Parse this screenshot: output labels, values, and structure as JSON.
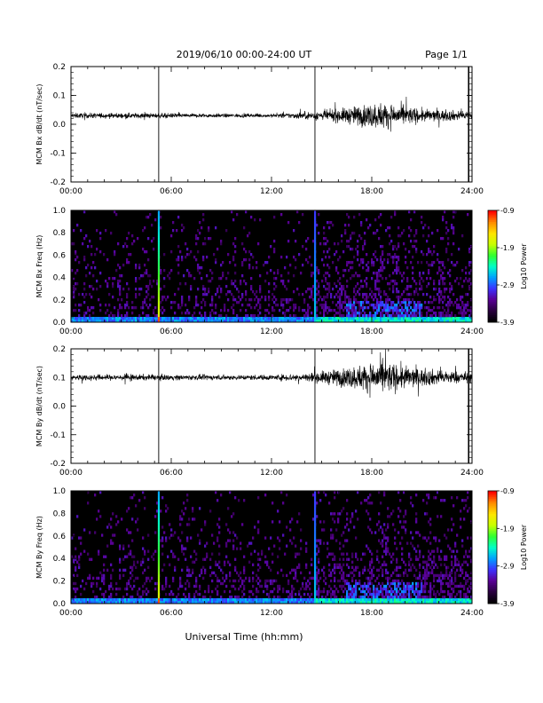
{
  "header": {
    "title": "2019/06/10  00:00-24:00 UT",
    "page": "Page 1/1"
  },
  "footer": {
    "xlabel": "Universal Time (hh:mm)"
  },
  "colors": {
    "trace": "#000000",
    "background": "#ffffff",
    "spectrogram_floor": "#000000",
    "colormap": [
      "#000000",
      "#2a0040",
      "#5a0096",
      "#3c32ff",
      "#00a0ff",
      "#00ffc8",
      "#30ff30",
      "#c8ff00",
      "#ffe600",
      "#ff8c00",
      "#ff0000"
    ]
  },
  "chart_data": [
    {
      "type": "line",
      "id": "bx-ts",
      "ylabel": "MCM Bx dB/dt (nT/sec)",
      "xticks": [
        "00:00",
        "06:00",
        "12:00",
        "18:00",
        "24:00"
      ],
      "xlim": [
        0,
        24
      ],
      "ylim": [
        -0.2,
        0.2
      ],
      "yticks": [
        "-0.2",
        "-0.1",
        "0.0",
        "0.1",
        "0.2"
      ],
      "baseline": 0.03,
      "spikes_hours": [
        5.25,
        14.6,
        23.8
      ],
      "noise_envelope": [
        [
          0,
          0.006
        ],
        [
          4,
          0.006
        ],
        [
          7,
          0.005
        ],
        [
          12,
          0.004
        ],
        [
          14.6,
          0.01
        ],
        [
          16,
          0.015
        ],
        [
          17.5,
          0.025
        ],
        [
          18.5,
          0.03
        ],
        [
          19.5,
          0.025
        ],
        [
          21,
          0.015
        ],
        [
          24,
          0.01
        ]
      ]
    },
    {
      "type": "heatmap",
      "id": "bx-spec",
      "ylabel": "MCM Bx Freq (Hz)",
      "xticks": [
        "00:00",
        "06:00",
        "12:00",
        "18:00",
        "24:00"
      ],
      "xlim": [
        0,
        24
      ],
      "ylim": [
        0.0,
        1.0
      ],
      "yticks": [
        "0.0",
        "0.2",
        "0.4",
        "0.6",
        "0.8",
        "1.0"
      ],
      "colorbar": {
        "label": "Log10 Power",
        "range": [
          -3.9,
          -0.9
        ],
        "ticks": [
          "-0.9",
          "-1.9",
          "-2.9",
          "-3.9"
        ]
      },
      "broadband_hours": [
        5.25,
        14.6
      ],
      "activity_hours": [
        [
          14.6,
          24.0
        ]
      ]
    },
    {
      "type": "line",
      "id": "by-ts",
      "ylabel": "MCM By dB/dt (nT/sec)",
      "xticks": [
        "00:00",
        "06:00",
        "12:00",
        "18:00",
        "24:00"
      ],
      "xlim": [
        0,
        24
      ],
      "ylim": [
        -0.2,
        0.2
      ],
      "yticks": [
        "-0.2",
        "-0.1",
        "0.0",
        "0.1",
        "0.2"
      ],
      "baseline": 0.1,
      "spikes_hours": [
        5.25,
        14.6,
        23.8
      ],
      "noise_envelope": [
        [
          0,
          0.007
        ],
        [
          4,
          0.007
        ],
        [
          7,
          0.006
        ],
        [
          12,
          0.006
        ],
        [
          14.6,
          0.012
        ],
        [
          16,
          0.02
        ],
        [
          17.5,
          0.03
        ],
        [
          18.5,
          0.04
        ],
        [
          19.5,
          0.03
        ],
        [
          21,
          0.02
        ],
        [
          24,
          0.012
        ]
      ]
    },
    {
      "type": "heatmap",
      "id": "by-spec",
      "ylabel": "MCM By Freq (Hz)",
      "xticks": [
        "00:00",
        "06:00",
        "12:00",
        "18:00",
        "24:00"
      ],
      "xlim": [
        0,
        24
      ],
      "ylim": [
        0.0,
        1.0
      ],
      "yticks": [
        "0.0",
        "0.2",
        "0.4",
        "0.6",
        "0.8",
        "1.0"
      ],
      "colorbar": {
        "label": "Log10 Power",
        "range": [
          -3.9,
          -0.9
        ],
        "ticks": [
          "-0.9",
          "-1.9",
          "-2.9",
          "-3.9"
        ]
      },
      "broadband_hours": [
        5.25,
        14.6
      ],
      "activity_hours": [
        [
          14.6,
          24.0
        ]
      ]
    }
  ]
}
